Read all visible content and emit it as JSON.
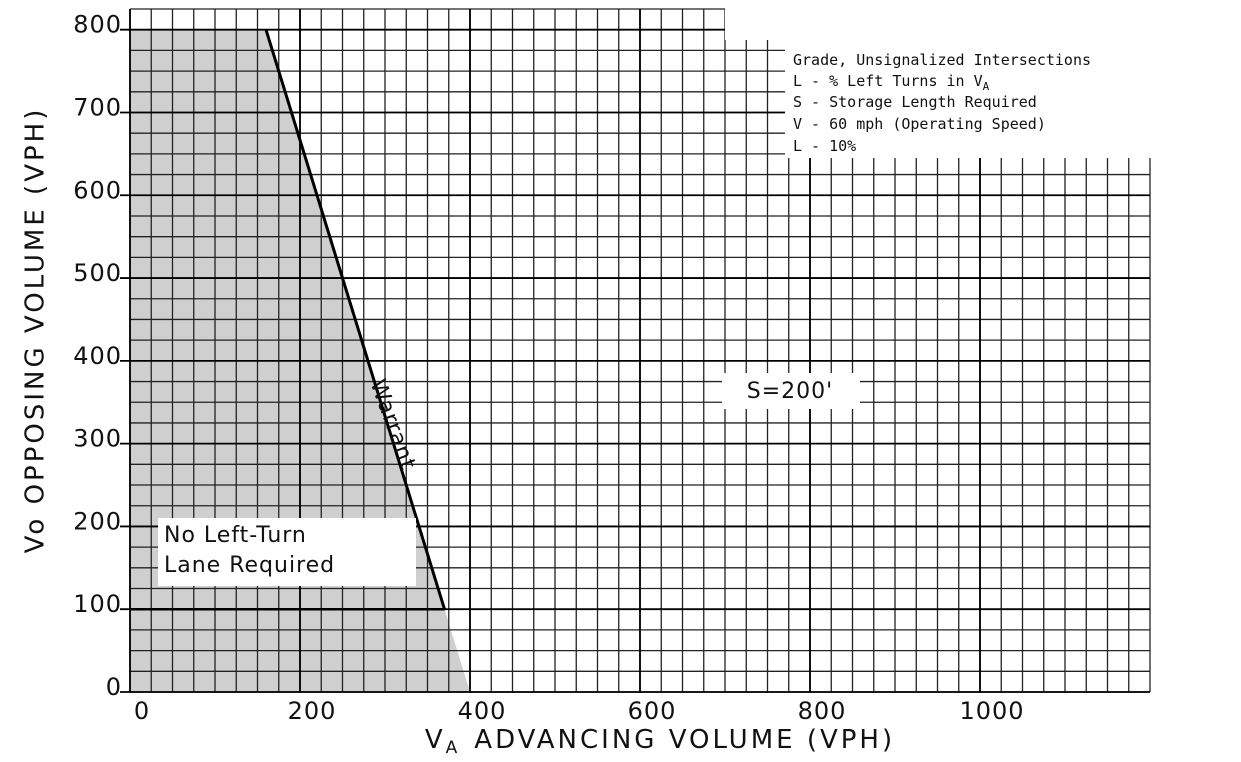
{
  "chart_data": {
    "type": "line",
    "x_label": {
      "symbol": "V",
      "subscript": "A",
      "text": "ADVANCING VOLUME (VPH)"
    },
    "y_label": "Vo OPPOSING VOLUME (VPH)",
    "xlim": [
      0,
      1200
    ],
    "ylim": [
      0,
      825
    ],
    "xticks": [
      0,
      200,
      400,
      600,
      800,
      1000
    ],
    "yticks": [
      0,
      100,
      200,
      300,
      400,
      500,
      600,
      700,
      800
    ],
    "grid": true,
    "minor_grid": 25,
    "series": [
      {
        "color": "#cfcfcf",
        "fill": true,
        "x": [
          0,
          160,
          370,
          400
        ],
        "values": [
          800,
          800,
          100,
          0
        ]
      },
      {
        "color": "#000000",
        "x": [
          160,
          370
        ],
        "values": [
          800,
          100
        ]
      }
    ],
    "legend_box": [
      {
        "text": "Grade, Unsignalized Intersections"
      },
      {
        "text": "L - % Left Turns in V",
        "subscript": "A"
      },
      {
        "text": "S - Storage Length Required"
      },
      {
        "text": "V - 60 mph (Operating Speed)"
      },
      {
        "text": "L - 10%"
      }
    ],
    "annotations": [
      "Warrant",
      "S=200'",
      "No Left-Turn",
      "Lane Required"
    ]
  }
}
